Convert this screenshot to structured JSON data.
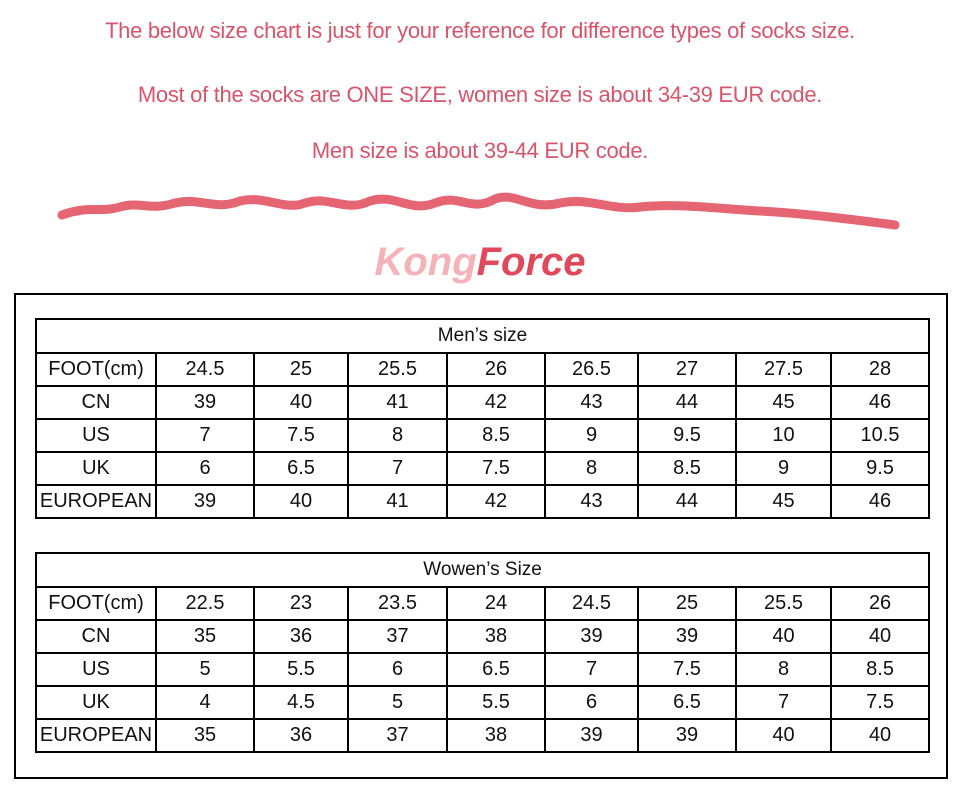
{
  "header": {
    "lines": [
      "The below size chart is just for your reference for difference types of socks size.",
      "Most of the socks are ONE SIZE, women size is about 34-39 EUR code.",
      "Men size is about 39-44 EUR code."
    ]
  },
  "brand": {
    "first": "Kong",
    "second": "Force"
  },
  "tables": [
    {
      "title": "Men’s size",
      "rows": [
        [
          "FOOT(cm)",
          "24.5",
          "25",
          "25.5",
          "26",
          "26.5",
          "27",
          "27.5",
          "28"
        ],
        [
          "CN",
          "39",
          "40",
          "41",
          "42",
          "43",
          "44",
          "45",
          "46"
        ],
        [
          "US",
          "7",
          "7.5",
          "8",
          "8.5",
          "9",
          "9.5",
          "10",
          "10.5"
        ],
        [
          "UK",
          "6",
          "6.5",
          "7",
          "7.5",
          "8",
          "8.5",
          "9",
          "9.5"
        ],
        [
          "EUROPEAN",
          "39",
          "40",
          "41",
          "42",
          "43",
          "44",
          "45",
          "46"
        ]
      ]
    },
    {
      "title": "Wowen’s Size",
      "rows": [
        [
          "FOOT(cm)",
          "22.5",
          "23",
          "23.5",
          "24",
          "24.5",
          "25",
          "25.5",
          "26"
        ],
        [
          "CN",
          "35",
          "36",
          "37",
          "38",
          "39",
          "39",
          "40",
          "40"
        ],
        [
          "US",
          "5",
          "5.5",
          "6",
          "6.5",
          "7",
          "7.5",
          "8",
          "8.5"
        ],
        [
          "UK",
          "4",
          "4.5",
          "5",
          "5.5",
          "6",
          "6.5",
          "7",
          "7.5"
        ],
        [
          "EUROPEAN",
          "35",
          "36",
          "37",
          "38",
          "39",
          "39",
          "40",
          "40"
        ]
      ]
    }
  ]
}
